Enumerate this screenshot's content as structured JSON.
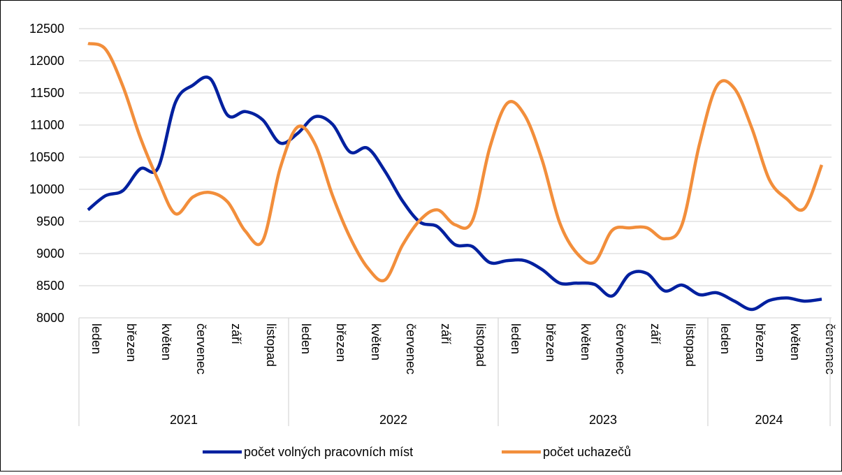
{
  "chart_data": {
    "type": "line",
    "categories": [
      "leden",
      null,
      "březen",
      null,
      "květen",
      null,
      "červenec",
      null,
      "září",
      null,
      "listopad",
      null,
      "leden",
      null,
      "březen",
      null,
      "květen",
      null,
      "červenec",
      null,
      "září",
      null,
      "listopad",
      null,
      "leden",
      null,
      "březen",
      null,
      "květen",
      null,
      "červenec",
      null,
      "září",
      null,
      "listopad",
      null,
      "leden",
      null,
      "březen",
      null,
      "květen",
      null,
      "červenec"
    ],
    "groups": [
      {
        "label": "2021",
        "size": 12
      },
      {
        "label": "2022",
        "size": 12
      },
      {
        "label": "2023",
        "size": 12
      },
      {
        "label": "2024",
        "size": 7
      }
    ],
    "series": [
      {
        "name": "počet volných pracovních míst",
        "color": "#00209f",
        "values": [
          9680,
          9900,
          9980,
          10320,
          10330,
          11350,
          11620,
          11720,
          11150,
          11210,
          11080,
          10720,
          10870,
          11130,
          11010,
          10580,
          10640,
          10280,
          9820,
          9490,
          9420,
          9140,
          9110,
          8860,
          8890,
          8890,
          8750,
          8540,
          8540,
          8520,
          8340,
          8680,
          8690,
          8420,
          8510,
          8360,
          8390,
          8260,
          8130,
          8270,
          8310,
          8260,
          8290
        ]
      },
      {
        "name": "počet uchazečů",
        "color": "#f28e3b",
        "values": [
          12270,
          12180,
          11600,
          10800,
          10150,
          9620,
          9880,
          9950,
          9800,
          9350,
          9200,
          10330,
          10970,
          10700,
          9900,
          9250,
          8780,
          8590,
          9130,
          9520,
          9680,
          9450,
          9510,
          10650,
          11340,
          11150,
          10450,
          9480,
          9000,
          8870,
          9360,
          9400,
          9400,
          9230,
          9450,
          10700,
          11610,
          11570,
          10950,
          10150,
          9850,
          9700,
          10380
        ]
      }
    ],
    "ylim": [
      8000,
      12500
    ],
    "yticks": [
      8000,
      8500,
      9000,
      9500,
      10000,
      10500,
      11000,
      11500,
      12000,
      12500
    ],
    "grid": true,
    "legend": "bottom"
  }
}
